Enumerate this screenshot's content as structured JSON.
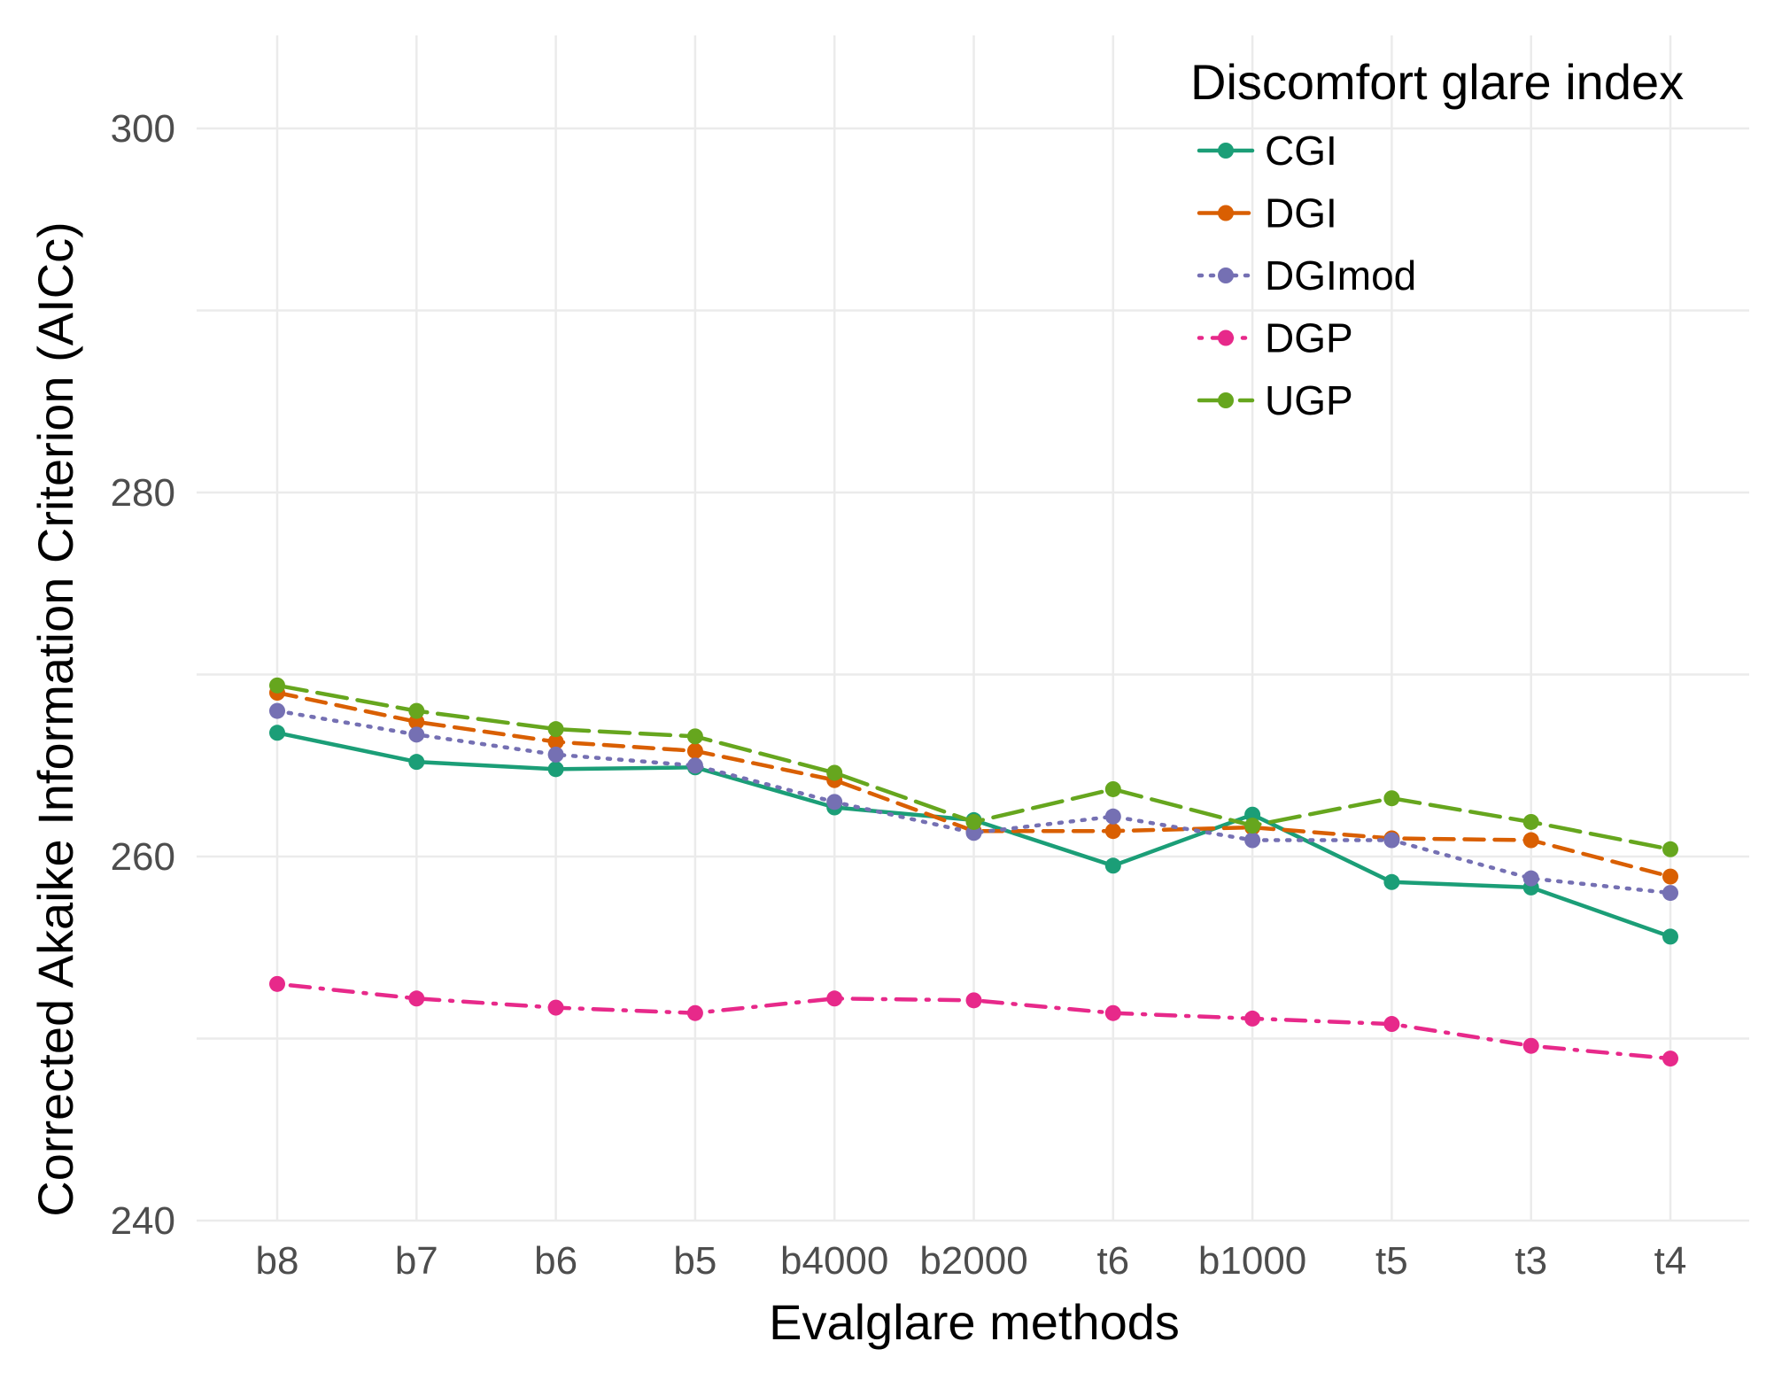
{
  "chart_data": {
    "type": "line",
    "title": "",
    "xlabel": "Evalglare methods",
    "ylabel": "Corrected Akaike Information Criterion (AICc)",
    "categories": [
      "b8",
      "b7",
      "b6",
      "b5",
      "b4000",
      "b2000",
      "t6",
      "b1000",
      "t5",
      "t3",
      "t4"
    ],
    "ylim": [
      240,
      304
    ],
    "yticks": [
      240,
      260,
      280,
      300
    ],
    "grid": true,
    "legend": {
      "title": "Discomfort glare index",
      "position": "top-right"
    },
    "series": [
      {
        "name": "CGI",
        "color": "#1b9e77",
        "dash": "solid",
        "values": [
          266.8,
          265.2,
          264.8,
          264.9,
          262.7,
          262.0,
          259.5,
          262.3,
          258.6,
          258.3,
          255.6
        ]
      },
      {
        "name": "DGI",
        "color": "#d95f02",
        "dash": "dashed",
        "values": [
          269.0,
          267.4,
          266.3,
          265.8,
          264.2,
          261.4,
          261.4,
          261.6,
          261.0,
          260.9,
          258.9
        ]
      },
      {
        "name": "DGImod",
        "color": "#7570b3",
        "dash": "dotted",
        "values": [
          268.0,
          266.7,
          265.6,
          265.0,
          263.0,
          261.3,
          262.2,
          260.9,
          260.9,
          258.8,
          258.0
        ]
      },
      {
        "name": "DGP",
        "color": "#e7298a",
        "dash": "dotdash",
        "values": [
          253.0,
          252.2,
          251.7,
          251.4,
          252.2,
          252.1,
          251.4,
          251.1,
          250.8,
          249.6,
          248.9
        ]
      },
      {
        "name": "UGP",
        "color": "#66a61e",
        "dash": "longdash",
        "values": [
          269.4,
          268.0,
          267.0,
          266.6,
          264.6,
          261.9,
          263.7,
          261.7,
          263.2,
          261.9,
          260.4
        ]
      }
    ]
  }
}
